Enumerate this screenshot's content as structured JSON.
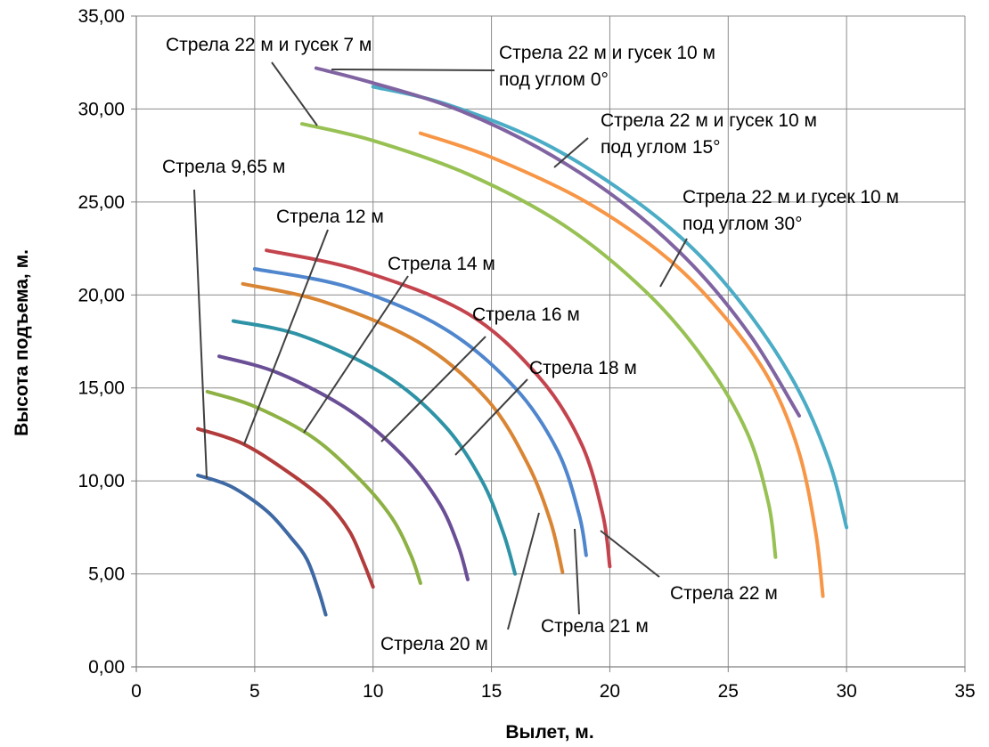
{
  "chart_data": {
    "type": "line",
    "xlabel": "Вылет, м.",
    "ylabel": "Высота подъема, м.",
    "xlim": [
      0,
      35
    ],
    "ylim": [
      0,
      35
    ],
    "x_ticks": [
      0,
      5,
      10,
      15,
      20,
      25,
      30,
      35
    ],
    "x_tick_labels": [
      "0",
      "5",
      "10",
      "15",
      "20",
      "25",
      "30",
      "35"
    ],
    "y_ticks": [
      0,
      5,
      10,
      15,
      20,
      25,
      30,
      35
    ],
    "y_tick_labels": [
      "0,00",
      "5,00",
      "10,00",
      "15,00",
      "20,00",
      "25,00",
      "30,00",
      "35,00"
    ],
    "grid": true,
    "legend": "none",
    "series": [
      {
        "color": "#3e69a4",
        "x": [
          2.6,
          4.0,
          5.5,
          6.5,
          7.2,
          7.7,
          8.0
        ],
        "y": [
          10.3,
          9.7,
          8.4,
          7.0,
          5.8,
          4.1,
          2.8
        ]
      },
      {
        "color": "#b23b3b",
        "x": [
          2.6,
          4.5,
          6.5,
          8.0,
          9.0,
          9.6,
          10.0
        ],
        "y": [
          12.8,
          12.0,
          10.4,
          8.9,
          7.3,
          5.6,
          4.3
        ]
      },
      {
        "color": "#8db144",
        "x": [
          3.0,
          5.0,
          7.5,
          9.5,
          10.8,
          11.6,
          12.0
        ],
        "y": [
          14.8,
          14.0,
          12.3,
          10.0,
          8.0,
          6.0,
          4.5
        ]
      },
      {
        "color": "#6a4f96",
        "x": [
          3.5,
          6.0,
          9.0,
          11.3,
          12.8,
          13.6,
          14.0
        ],
        "y": [
          16.7,
          15.8,
          13.8,
          11.3,
          8.8,
          6.5,
          4.7
        ]
      },
      {
        "color": "#2e93a6",
        "x": [
          4.1,
          7.0,
          10.5,
          13.0,
          14.6,
          15.5,
          16.0
        ],
        "y": [
          18.6,
          17.8,
          15.7,
          13.0,
          10.0,
          7.2,
          5.0
        ]
      },
      {
        "color": "#d98533",
        "x": [
          4.5,
          8.0,
          12.0,
          14.8,
          16.5,
          17.5,
          18.0
        ],
        "y": [
          20.6,
          19.6,
          17.4,
          14.4,
          11.0,
          7.8,
          5.1
        ]
      },
      {
        "color": "#4f86cd",
        "x": [
          5.0,
          9.0,
          13.0,
          16.0,
          17.8,
          18.7,
          19.0
        ],
        "y": [
          21.4,
          20.4,
          18.2,
          15.0,
          11.6,
          8.2,
          6.0
        ]
      },
      {
        "color": "#c4444e",
        "x": [
          5.5,
          9.5,
          14.0,
          17.0,
          18.8,
          19.7,
          20.0
        ],
        "y": [
          22.4,
          21.3,
          19.0,
          15.6,
          12.0,
          8.2,
          5.4
        ]
      },
      {
        "color": "#98c154",
        "x": [
          7.0,
          10.0,
          14.0,
          18.0,
          21.5,
          24.0,
          25.8,
          26.7,
          27.0
        ],
        "y": [
          29.2,
          28.3,
          26.5,
          23.8,
          20.2,
          16.5,
          12.6,
          8.8,
          5.9
        ]
      },
      {
        "color": "#f79646",
        "x": [
          12.0,
          15.0,
          19.0,
          22.5,
          25.0,
          26.8,
          28.0,
          28.7,
          29.0
        ],
        "y": [
          28.7,
          27.4,
          25.0,
          21.9,
          18.6,
          15.3,
          11.5,
          7.2,
          3.8
        ]
      },
      {
        "color": "#4bacc6",
        "x": [
          10.0,
          13.0,
          17.0,
          20.5,
          23.5,
          26.0,
          28.0,
          29.3,
          30.0
        ],
        "y": [
          31.2,
          30.3,
          28.3,
          25.6,
          22.5,
          18.8,
          14.8,
          10.9,
          7.5
        ]
      },
      {
        "color": "#8064a2",
        "x": [
          7.6,
          10.0,
          13.5,
          17.0,
          20.5,
          23.5,
          26.0,
          28.0
        ],
        "y": [
          32.2,
          31.4,
          30.0,
          27.9,
          25.0,
          21.6,
          17.7,
          13.5
        ]
      }
    ],
    "annotations": [
      {
        "text": "Стрела 22 м и гусек 7 м"
      },
      {
        "text": "Стрела 22 м и гусек 10 м"
      },
      {
        "text": "под углом 0°"
      },
      {
        "text": "Стрела 22 м и гусек 10 м"
      },
      {
        "text": "под углом 15°"
      },
      {
        "text": "Стрела 22 м и гусек 10 м"
      },
      {
        "text": "под углом 30°"
      },
      {
        "text": "Стрела 9,65 м"
      },
      {
        "text": "Стрела 12 м"
      },
      {
        "text": "Стрела 14 м"
      },
      {
        "text": "Стрела 16 м"
      },
      {
        "text": "Стрела 18 м"
      },
      {
        "text": "Стрела 22 м"
      },
      {
        "text": "Стрела 21 м"
      },
      {
        "text": "Стрела 20 м"
      }
    ]
  }
}
